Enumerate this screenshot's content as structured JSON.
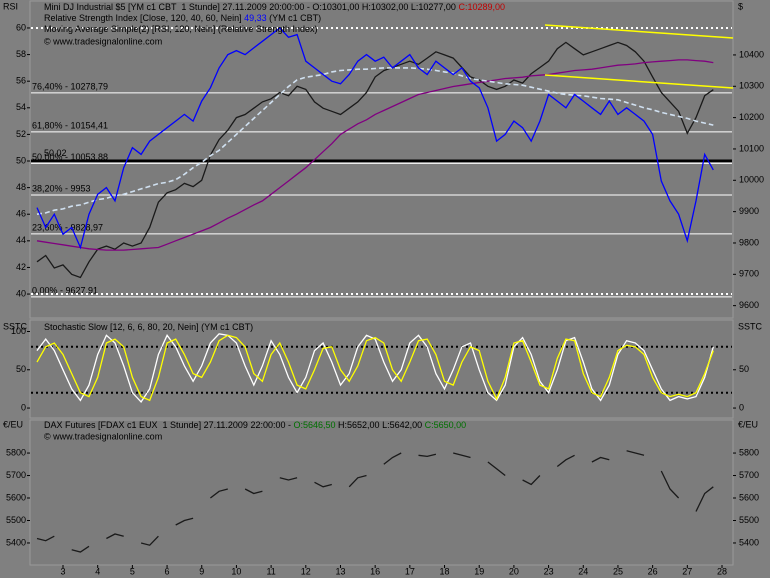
{
  "chart_data": [
    {
      "type": "line",
      "header_left": "RSI",
      "header_right": "$",
      "legend": [
        [
          {
            "text": "Mini DJ Industrial $5 [YM c1 CBT  1 Stunde] 27.11.2009 20:00:00 - O:10301,00 H:10302,00 L:10277,00 ",
            "color": "#000000"
          },
          {
            "text": "C:10289,00",
            "color": "#c00000"
          }
        ],
        [
          {
            "text": "Relative Strength Index [Close, 120, 40, 60, Nein] ",
            "color": "#000000"
          },
          {
            "text": "49,33",
            "color": "#0000ff"
          },
          {
            "text": " (YM c1 CBT)",
            "color": "#000000"
          }
        ],
        [
          {
            "text": "Moving Average Simple(2) [RSI, 120, Nein] ",
            "color": "#000000"
          },
          {
            "text": "(Relative Strength Index)",
            "color": "#000000"
          }
        ]
      ],
      "copyright": "© www.tradesignalonline.com",
      "ylim": [
        38.35,
        61.2
      ],
      "yticks": [
        40,
        42,
        44,
        46,
        48,
        50,
        52,
        54,
        56,
        58,
        60
      ],
      "y2lim": [
        9567,
        10537
      ],
      "y2ticks": [
        9600,
        9700,
        9800,
        9900,
        10000,
        10100,
        10200,
        10300,
        10400
      ],
      "ref_lines": [
        60,
        40
      ],
      "ref_line_color": "#ffffff",
      "level_lines": [
        {
          "value": 50.02,
          "label": "50,02"
        }
      ],
      "fib_levels": [
        {
          "value": 10278.79,
          "label": "76,40% - 10278,79"
        },
        {
          "value": 10154.41,
          "label": "61,80% - 10154,41"
        },
        {
          "value": 10053.88,
          "label": "50,00% - 10053,88"
        },
        {
          "value": 9953,
          "label": "38,20% - 9953"
        },
        {
          "value": 9828.97,
          "label": "23,60% - 9828,97"
        },
        {
          "value": 9627.91,
          "label": "0,00% - 9627,91"
        }
      ],
      "series": [
        {
          "color": "#1a1a1a",
          "axis": "y2",
          "values": [
            9740,
            9760,
            9720,
            9730,
            9700,
            9690,
            9740,
            9780,
            9790,
            9780,
            9800,
            9790,
            9800,
            9850,
            9930,
            9960,
            9970,
            9990,
            9980,
            10000,
            10080,
            10130,
            10160,
            10200,
            10210,
            10230,
            10250,
            10260,
            10280,
            10270,
            10300,
            10290,
            10250,
            10230,
            10220,
            10210,
            10230,
            10250,
            10280,
            10330,
            10350,
            10360,
            10370,
            10380,
            10370,
            10390,
            10410,
            10400,
            10390,
            10360,
            10330,
            10320,
            10300,
            10290,
            10300,
            10320,
            10310,
            10340,
            10360,
            10380,
            10420,
            10440,
            10420,
            10400,
            10410,
            10420,
            10430,
            10440,
            10430,
            10410,
            10380,
            10330,
            10280,
            10250,
            10220,
            10150,
            10200,
            10270,
            10289,
            null
          ]
        },
        {
          "color": "#800080",
          "values": [
            44,
            43.9,
            43.8,
            43.7,
            43.6,
            43.5,
            43.4,
            43.35,
            43.3,
            43.3,
            43.3,
            43.35,
            43.4,
            43.45,
            43.5,
            43.75,
            44,
            44.25,
            44.5,
            44.75,
            45,
            45.35,
            45.7,
            46,
            46.35,
            46.7,
            47,
            47.5,
            48,
            48.5,
            49,
            49.5,
            50.1,
            50.7,
            51.3,
            52,
            52.4,
            52.8,
            53.1,
            53.5,
            53.8,
            54.1,
            54.4,
            54.7,
            55,
            55.15,
            55.3,
            55.45,
            55.6,
            55.7,
            55.8,
            55.9,
            56,
            56.1,
            56.2,
            56.25,
            56.3,
            56.4,
            56.45,
            56.5,
            56.6,
            56.7,
            56.8,
            56.85,
            56.9,
            57,
            57.1,
            57.2,
            57.25,
            57.3,
            57.4,
            57.45,
            57.5,
            57.55,
            57.6,
            57.6,
            57.55,
            57.5,
            57.4,
            null
          ]
        },
        {
          "color": "#d0e0f0",
          "dashed": true,
          "values": [
            46,
            46.1,
            46.3,
            46.4,
            46.6,
            46.7,
            46.9,
            47.1,
            47.2,
            47.4,
            47.5,
            47.7,
            47.9,
            48.1,
            48.3,
            48.4,
            48.6,
            49,
            49.5,
            49.9,
            50.4,
            50.8,
            51.4,
            52,
            52.6,
            53.2,
            53.8,
            54.4,
            55,
            55.6,
            56.1,
            56.3,
            56.4,
            56.5,
            56.7,
            56.8,
            56.85,
            56.9,
            56.9,
            56.95,
            57,
            57,
            57,
            57,
            56.95,
            56.9,
            56.8,
            56.7,
            56.6,
            56.4,
            56.2,
            56.1,
            56,
            55.9,
            55.8,
            55.75,
            55.7,
            55.55,
            55.4,
            55.25,
            55.1,
            55,
            54.95,
            54.9,
            54.8,
            54.7,
            54.65,
            54.6,
            54.4,
            54.2,
            54,
            53.85,
            53.65,
            53.5,
            53.35,
            53.2,
            53,
            52.85,
            52.7,
            null
          ]
        },
        {
          "color": "#0000ff",
          "values": [
            46.5,
            45,
            46,
            44.5,
            45,
            43.5,
            46,
            47.5,
            48,
            47,
            49.5,
            51,
            50.5,
            51.5,
            52,
            52.5,
            53,
            53.5,
            53,
            54.5,
            55.5,
            57,
            58,
            58.3,
            58,
            58.5,
            59,
            59.5,
            60,
            59.3,
            59.5,
            57.5,
            57,
            56.5,
            56,
            55.8,
            56.5,
            57.5,
            58,
            57.5,
            57.8,
            57,
            57.5,
            58,
            57,
            56.5,
            57.5,
            57,
            56.5,
            57,
            56,
            55.5,
            54,
            51.5,
            52,
            53,
            52.5,
            51.5,
            53,
            55,
            54.5,
            54,
            55,
            54.5,
            54,
            53.5,
            54.5,
            53.5,
            54,
            53.5,
            53,
            52,
            48.5,
            47,
            46,
            44,
            47,
            50.5,
            49.33,
            null
          ]
        }
      ]
    },
    {
      "type": "line",
      "header_left": "SSTC",
      "header_right": "SSTC",
      "legend": [
        [
          {
            "text": "Stochastic Slow [12, 6, 6, 80, 20, Nein] ",
            "color": "#000000"
          },
          {
            "text": "(YM c1 CBT)",
            "color": "#000000"
          }
        ]
      ],
      "ylim": [
        -13,
        115
      ],
      "yticks": [
        0,
        50,
        100
      ],
      "y2lim": [
        -13,
        115
      ],
      "y2ticks": [
        0,
        50
      ],
      "ref_lines": [
        80,
        20
      ],
      "ref_line_color": "#000000",
      "series": [
        {
          "color": "#ffffff",
          "values": [
            75,
            90,
            75,
            50,
            25,
            10,
            30,
            70,
            95,
            85,
            55,
            20,
            8,
            25,
            70,
            95,
            80,
            55,
            35,
            55,
            85,
            97,
            95,
            85,
            55,
            30,
            55,
            88,
            70,
            40,
            20,
            40,
            75,
            85,
            60,
            30,
            45,
            80,
            95,
            90,
            60,
            35,
            50,
            85,
            95,
            80,
            45,
            25,
            50,
            80,
            85,
            50,
            20,
            10,
            30,
            80,
            92,
            70,
            35,
            20,
            50,
            88,
            92,
            60,
            25,
            10,
            30,
            70,
            88,
            85,
            75,
            50,
            25,
            10,
            15,
            12,
            15,
            40,
            80,
            null
          ]
        },
        {
          "color": "#ffff00",
          "values": [
            60,
            80,
            85,
            70,
            45,
            20,
            15,
            40,
            85,
            90,
            80,
            40,
            15,
            10,
            40,
            85,
            90,
            70,
            45,
            40,
            60,
            88,
            95,
            92,
            80,
            45,
            35,
            70,
            85,
            60,
            30,
            25,
            50,
            78,
            80,
            50,
            35,
            55,
            88,
            92,
            85,
            50,
            35,
            60,
            88,
            90,
            70,
            35,
            30,
            60,
            80,
            75,
            35,
            12,
            40,
            85,
            88,
            60,
            30,
            25,
            65,
            90,
            88,
            45,
            20,
            15,
            40,
            75,
            82,
            80,
            70,
            40,
            20,
            15,
            18,
            15,
            20,
            45,
            75,
            null
          ]
        }
      ]
    },
    {
      "type": "line",
      "header_left": "€/EU",
      "header_right": "€/EU",
      "legend": [
        [
          {
            "text": "DAX Futures [FDAX c1 EUX  1 Stunde] 27.11.2009 22:00:00 - ",
            "color": "#000000"
          },
          {
            "text": "O:5646,50",
            "color": "#007000"
          },
          {
            "text": " H:5652,00 L:5642,00 ",
            "color": "#000000"
          },
          {
            "text": "C:5650,00",
            "color": "#007000"
          }
        ]
      ],
      "copyright": "© www.tradesignalonline.com",
      "categories": [
        null,
        null,
        null,
        "3",
        null,
        null,
        null,
        "4",
        null,
        null,
        null,
        "5",
        null,
        null,
        null,
        "6",
        null,
        null,
        null,
        "9",
        null,
        null,
        null,
        "10",
        null,
        null,
        null,
        "11",
        null,
        null,
        null,
        "12",
        null,
        null,
        null,
        "13",
        null,
        null,
        null,
        "16",
        null,
        null,
        null,
        "17",
        null,
        null,
        null,
        "18",
        null,
        null,
        null,
        "19",
        null,
        null,
        null,
        "20",
        null,
        null,
        null,
        "23",
        null,
        null,
        null,
        "24",
        null,
        null,
        null,
        "25",
        null,
        null,
        null,
        "26",
        null,
        null,
        null,
        "27",
        null,
        null,
        null,
        "28"
      ],
      "ylim": [
        5302,
        5947
      ],
      "yticks": [
        5400,
        5500,
        5600,
        5700,
        5800
      ],
      "y2lim": [
        5302,
        5947
      ],
      "y2ticks": [
        5400,
        5500,
        5600,
        5700,
        5800
      ],
      "series": [
        {
          "color": "#1a1a1a",
          "values": [
            5420,
            5410,
            5430,
            null,
            5370,
            5360,
            5385,
            null,
            5420,
            5440,
            5430,
            null,
            5400,
            5390,
            5430,
            null,
            5480,
            5500,
            5510,
            null,
            5600,
            5630,
            5640,
            null,
            5640,
            5620,
            5630,
            null,
            5690,
            5680,
            5690,
            null,
            5670,
            5650,
            5660,
            null,
            5650,
            5690,
            5700,
            null,
            5750,
            5780,
            5800,
            null,
            5790,
            5785,
            5795,
            null,
            5800,
            5790,
            5780,
            null,
            5760,
            5730,
            5700,
            null,
            5680,
            5660,
            5700,
            null,
            5740,
            5770,
            5790,
            null,
            5760,
            5780,
            5770,
            null,
            5810,
            5800,
            5790,
            null,
            5720,
            5640,
            5600,
            null,
            5540,
            5620,
            5650,
            null
          ]
        }
      ]
    }
  ]
}
